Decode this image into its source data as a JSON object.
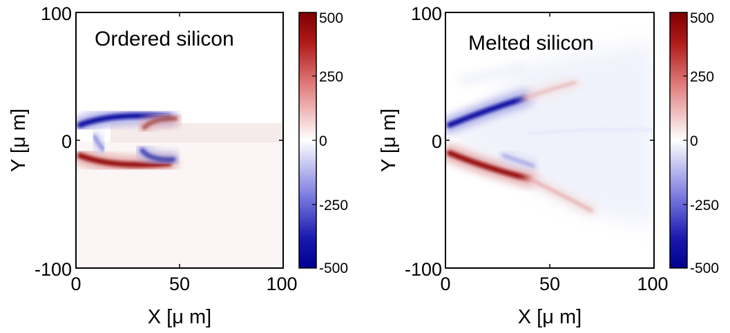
{
  "chart_data": [
    {
      "type": "heatmap",
      "title": "Ordered silicon",
      "xlabel": "X [μ m]",
      "ylabel": "Y [μ m]",
      "xlim": [
        0,
        100
      ],
      "ylim": [
        -100,
        100
      ],
      "xticks": [
        "0",
        "50",
        "100"
      ],
      "yticks": [
        "100",
        "0",
        "-100"
      ],
      "colorbar": {
        "range": [
          -500,
          500
        ],
        "ticks": [
          "500",
          "250",
          "0",
          "-250",
          "-500"
        ],
        "colormap": "blue-white-red",
        "low_color": "#00008f",
        "mid_color": "#ffffff",
        "high_color": "#7f0000"
      },
      "features": [
        {
          "sign": "negative",
          "from": [
            2,
            12
          ],
          "ctrl": [
            18,
            22
          ],
          "to": [
            45,
            18
          ],
          "peak": -480
        },
        {
          "sign": "positive",
          "from": [
            2,
            -12
          ],
          "ctrl": [
            18,
            -22
          ],
          "to": [
            45,
            -18
          ],
          "peak": 480
        },
        {
          "sign": "positive",
          "from": [
            33,
            10
          ],
          "ctrl": [
            37,
            17
          ],
          "to": [
            48,
            17
          ],
          "peak": 350
        },
        {
          "sign": "negative",
          "from": [
            32,
            -8
          ],
          "ctrl": [
            36,
            -16
          ],
          "to": [
            47,
            -15
          ],
          "peak": -380
        },
        {
          "sign": "negative",
          "from": [
            9,
            3
          ],
          "ctrl": [
            11,
            -3
          ],
          "to": [
            13,
            -7
          ],
          "peak": -250
        }
      ]
    },
    {
      "type": "heatmap",
      "title": "Melted silicon",
      "xlabel": "X [μ m]",
      "ylabel": "Y [μ m]",
      "xlim": [
        0,
        100
      ],
      "ylim": [
        -100,
        100
      ],
      "xticks": [
        "0",
        "50",
        "100"
      ],
      "yticks": [
        "100",
        "0",
        "-100"
      ],
      "colorbar": {
        "range": [
          -500,
          500
        ],
        "ticks": [
          "500",
          "250",
          "0",
          "-250",
          "-500"
        ],
        "colormap": "blue-white-red",
        "low_color": "#00008f",
        "mid_color": "#ffffff",
        "high_color": "#7f0000"
      },
      "features": [
        {
          "sign": "negative",
          "from": [
            2,
            12
          ],
          "ctrl": [
            20,
            24
          ],
          "to": [
            38,
            33
          ],
          "peak": -480
        },
        {
          "sign": "positive",
          "from": [
            2,
            -10
          ],
          "ctrl": [
            20,
            -22
          ],
          "to": [
            40,
            -30
          ],
          "peak": 480
        },
        {
          "sign": "positive",
          "from": [
            38,
            33
          ],
          "ctrl": [
            50,
            40
          ],
          "to": [
            62,
            45
          ],
          "peak": 160
        },
        {
          "sign": "positive",
          "from": [
            40,
            -30
          ],
          "ctrl": [
            55,
            -42
          ],
          "to": [
            70,
            -55
          ],
          "peak": 180
        },
        {
          "sign": "negative",
          "from": [
            28,
            -12
          ],
          "ctrl": [
            35,
            -16
          ],
          "to": [
            42,
            -20
          ],
          "peak": -200
        },
        {
          "sign": "negative",
          "from": [
            40,
            5
          ],
          "ctrl": [
            70,
            10
          ],
          "to": [
            100,
            8
          ],
          "peak": -60
        }
      ]
    }
  ]
}
